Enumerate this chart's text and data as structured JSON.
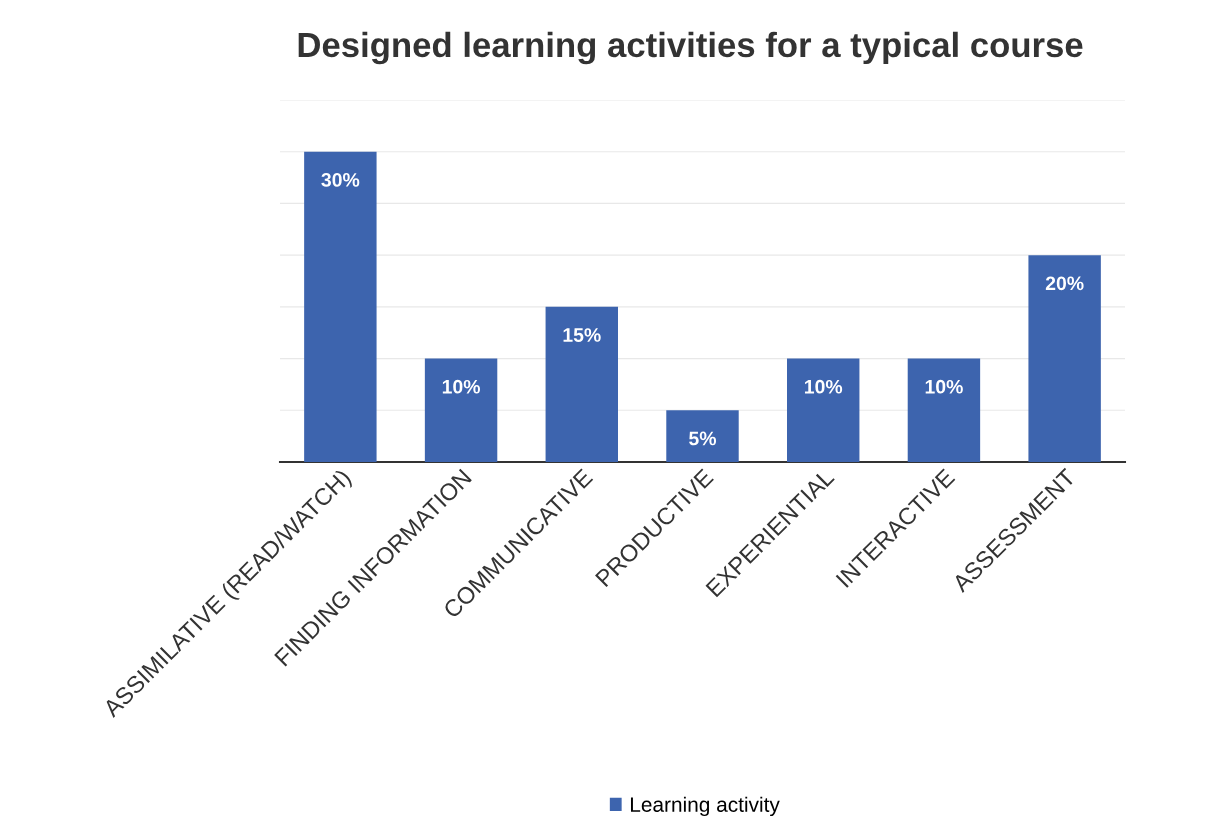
{
  "chart_data": {
    "type": "bar",
    "title": "Designed learning activities for a typical course",
    "categories": [
      "ASSIMILATIVE (READ/WATCH)",
      "FINDING INFORMATION",
      "COMMUNICATIVE",
      "PRODUCTIVE",
      "EXPERIENTIAL",
      "INTERACTIVE",
      "ASSESSMENT"
    ],
    "series": [
      {
        "name": "Learning activity",
        "color": "#3d64ae",
        "values": [
          30,
          10,
          15,
          5,
          10,
          10,
          20
        ],
        "value_labels": [
          "30%",
          "10%",
          "15%",
          "5%",
          "10%",
          "10%",
          "20%"
        ]
      }
    ],
    "ylim": [
      0,
      35
    ],
    "yticks": [
      {
        "value": 0,
        "label": null
      },
      {
        "value": 5,
        "label": null
      },
      {
        "value": 10,
        "label": null
      },
      {
        "value": 15,
        "label": null
      },
      {
        "value": 20,
        "label": null
      },
      {
        "value": 25,
        "label": null
      },
      {
        "value": 30,
        "label": null
      },
      {
        "value": 35,
        "label": null
      }
    ],
    "tick_labels": "x",
    "grid": "y",
    "legend": "bottom"
  }
}
